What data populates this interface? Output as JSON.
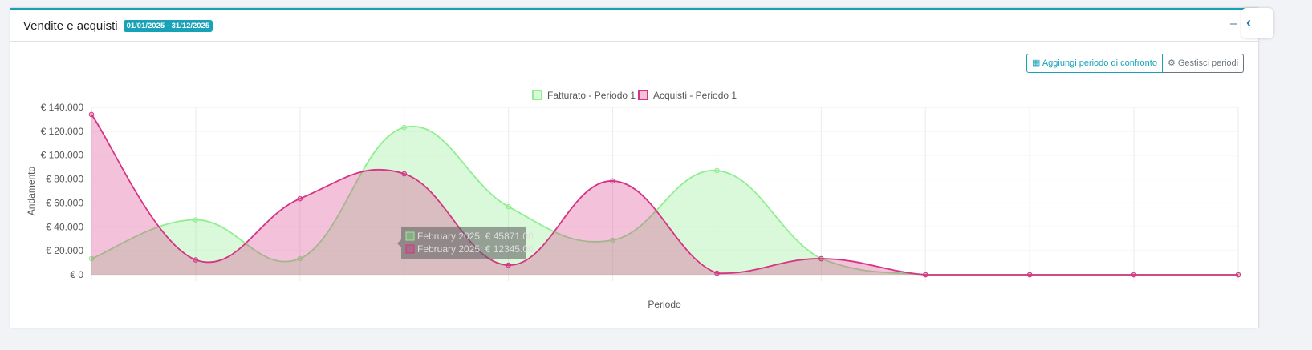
{
  "header": {
    "title": "Vendite e acquisti",
    "date_range": "01/01/2025 - 31/12/2025"
  },
  "toolbar": {
    "add_compare": "Aggiungi periodo di confronto",
    "manage": "Gestisci periodi"
  },
  "chart_data": {
    "type": "area",
    "ylabel": "Andamento",
    "xlabel": "Periodo",
    "ylim": [
      0,
      140000
    ],
    "yticks": [
      "€ 0",
      "€ 20.000",
      "€ 40.000",
      "€ 60.000",
      "€ 80.000",
      "€ 100.000",
      "€ 120.000",
      "€ 140.000"
    ],
    "grid": true,
    "legend": "top",
    "series": [
      {
        "name": "Fatturato - Periodo 1",
        "color": "#90ee90",
        "values": [
          13400,
          45871,
          13400,
          123200,
          56900,
          28800,
          87100,
          13400,
          0,
          0,
          0,
          0
        ]
      },
      {
        "name": "Acquisti - Periodo 1",
        "color": "#d63384",
        "values": [
          134000,
          12345,
          63600,
          84400,
          8000,
          78400,
          1300,
          13400,
          0,
          0,
          0,
          0
        ]
      }
    ],
    "tooltip": [
      "February 2025: € 45871.00",
      "February 2025: € 12345.00"
    ]
  }
}
